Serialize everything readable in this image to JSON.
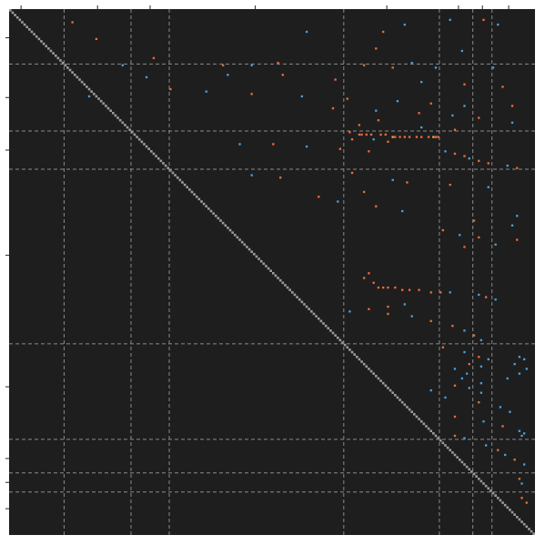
{
  "chart_data": {
    "type": "heatmap",
    "title": "",
    "xlabel": "",
    "ylabel": "",
    "matrix_size": 220,
    "background_color": "#1e1e1e",
    "diagonal_color": "#9a9a9a",
    "grid_line_color": "#8a8a8a",
    "grid_line_style": "dashed",
    "color_positive": "#ef6a3a",
    "color_negative": "#4a9fd8",
    "color_highlight": "#f2a35e",
    "block_boundaries": [
      23,
      51,
      67,
      140,
      180,
      194,
      202
    ],
    "x_ticks": [
      5,
      37,
      59,
      103,
      158,
      188,
      198,
      209
    ],
    "y_ticks": [
      12,
      37,
      59,
      103,
      158,
      188,
      198,
      209
    ],
    "cells": [
      [
        5,
        26,
        1
      ],
      [
        12,
        36,
        1
      ],
      [
        20,
        60,
        1
      ],
      [
        33,
        67,
        1
      ],
      [
        36,
        33,
        -1
      ],
      [
        9,
        124,
        -1
      ],
      [
        9,
        156,
        1
      ],
      [
        4,
        184,
        -1
      ],
      [
        4,
        198,
        1
      ],
      [
        6,
        204,
        -1
      ],
      [
        16,
        153,
        1
      ],
      [
        17,
        189,
        -1
      ],
      [
        6,
        165,
        -1
      ],
      [
        22,
        112,
        1
      ],
      [
        22,
        168,
        -1
      ],
      [
        23,
        47,
        -1
      ],
      [
        23,
        89,
        1
      ],
      [
        23,
        101,
        -1
      ],
      [
        23,
        148,
        1
      ],
      [
        24,
        160,
        1
      ],
      [
        24,
        178,
        -1
      ],
      [
        24,
        202,
        -1
      ],
      [
        27,
        91,
        -1
      ],
      [
        27,
        114,
        1
      ],
      [
        28,
        57,
        -1
      ],
      [
        29,
        136,
        1
      ],
      [
        30,
        172,
        -1
      ],
      [
        31,
        190,
        1
      ],
      [
        32,
        206,
        1
      ],
      [
        34,
        82,
        -1
      ],
      [
        35,
        101,
        1
      ],
      [
        36,
        122,
        -1
      ],
      [
        37,
        141,
        1
      ],
      [
        38,
        162,
        -1
      ],
      [
        39,
        176,
        1
      ],
      [
        40,
        190,
        -1
      ],
      [
        40,
        210,
        1
      ],
      [
        41,
        135,
        1
      ],
      [
        42,
        153,
        -1
      ],
      [
        43,
        171,
        1
      ],
      [
        44,
        185,
        -1
      ],
      [
        45,
        196,
        1
      ],
      [
        46,
        154,
        1
      ],
      [
        47,
        210,
        -1
      ],
      [
        48,
        146,
        1
      ],
      [
        49,
        172,
        -1
      ],
      [
        50,
        186,
        1
      ],
      [
        51,
        142,
        1
      ],
      [
        52,
        146,
        1
      ],
      [
        52,
        147,
        1
      ],
      [
        52,
        149,
        1
      ],
      [
        52,
        151,
        1
      ],
      [
        52,
        155,
        1
      ],
      [
        52,
        157,
        1
      ],
      [
        53,
        160,
        2
      ],
      [
        53,
        161,
        1
      ],
      [
        53,
        163,
        1
      ],
      [
        53,
        165,
        1
      ],
      [
        53,
        167,
        1
      ],
      [
        53,
        170,
        1
      ],
      [
        53,
        172,
        1
      ],
      [
        53,
        175,
        1
      ],
      [
        53,
        177,
        2
      ],
      [
        53,
        178,
        1
      ],
      [
        53,
        179,
        1
      ],
      [
        54,
        143,
        1
      ],
      [
        54,
        152,
        -1
      ],
      [
        55,
        158,
        1
      ],
      [
        56,
        96,
        -1
      ],
      [
        56,
        110,
        1
      ],
      [
        57,
        124,
        -1
      ],
      [
        58,
        138,
        1
      ],
      [
        59,
        150,
        1
      ],
      [
        59,
        182,
        -1
      ],
      [
        60,
        186,
        1
      ],
      [
        61,
        190,
        1
      ],
      [
        62,
        192,
        -1
      ],
      [
        63,
        196,
        1
      ],
      [
        64,
        200,
        1
      ],
      [
        65,
        208,
        -1
      ],
      [
        66,
        212,
        1
      ],
      [
        68,
        143,
        1
      ],
      [
        69,
        101,
        -1
      ],
      [
        70,
        113,
        1
      ],
      [
        71,
        160,
        -1
      ],
      [
        72,
        166,
        1
      ],
      [
        73,
        184,
        1
      ],
      [
        74,
        200,
        -1
      ],
      [
        76,
        148,
        1
      ],
      [
        78,
        129,
        1
      ],
      [
        80,
        137,
        -1
      ],
      [
        82,
        153,
        1
      ],
      [
        84,
        164,
        -1
      ],
      [
        86,
        212,
        -1
      ],
      [
        88,
        194,
        1
      ],
      [
        90,
        210,
        -1
      ],
      [
        92,
        181,
        1
      ],
      [
        94,
        188,
        -1
      ],
      [
        95,
        196,
        1
      ],
      [
        96,
        212,
        1
      ],
      [
        98,
        203,
        -1
      ],
      [
        99,
        190,
        1
      ],
      [
        110,
        150,
        1
      ],
      [
        112,
        148,
        1
      ],
      [
        114,
        152,
        1
      ],
      [
        116,
        154,
        1
      ],
      [
        116,
        156,
        1
      ],
      [
        116,
        158,
        1
      ],
      [
        116,
        161,
        1
      ],
      [
        117,
        164,
        1
      ],
      [
        117,
        167,
        1
      ],
      [
        117,
        171,
        1
      ],
      [
        118,
        176,
        1
      ],
      [
        118,
        180,
        1
      ],
      [
        118,
        184,
        -1
      ],
      [
        119,
        196,
        -1
      ],
      [
        120,
        199,
        1
      ],
      [
        121,
        203,
        -1
      ],
      [
        123,
        165,
        -1
      ],
      [
        124,
        158,
        1
      ],
      [
        125,
        150,
        1
      ],
      [
        126,
        142,
        -1
      ],
      [
        127,
        158,
        1
      ],
      [
        128,
        168,
        -1
      ],
      [
        130,
        176,
        1
      ],
      [
        132,
        185,
        1
      ],
      [
        134,
        190,
        -1
      ],
      [
        136,
        194,
        1
      ],
      [
        138,
        197,
        -1
      ],
      [
        141,
        181,
        1
      ],
      [
        143,
        190,
        -1
      ],
      [
        145,
        196,
        1
      ],
      [
        146,
        200,
        -1
      ],
      [
        148,
        192,
        1
      ],
      [
        149,
        197,
        -1
      ],
      [
        145,
        213,
        -1
      ],
      [
        146,
        215,
        -1
      ],
      [
        148,
        211,
        -1
      ],
      [
        150,
        216,
        -1
      ],
      [
        152,
        213,
        -1
      ],
      [
        154,
        208,
        -1
      ],
      [
        150,
        186,
        -1
      ],
      [
        152,
        191,
        -1
      ],
      [
        154,
        189,
        -1
      ],
      [
        156,
        197,
        -1
      ],
      [
        158,
        192,
        -1
      ],
      [
        160,
        197,
        -1
      ],
      [
        157,
        186,
        1
      ],
      [
        159,
        176,
        -1
      ],
      [
        162,
        182,
        -1
      ],
      [
        164,
        196,
        1
      ],
      [
        166,
        205,
        -1
      ],
      [
        168,
        209,
        -1
      ],
      [
        170,
        186,
        1
      ],
      [
        172,
        198,
        -1
      ],
      [
        174,
        206,
        1
      ],
      [
        176,
        213,
        -1
      ],
      [
        178,
        214,
        -1
      ],
      [
        177,
        215,
        -1
      ],
      [
        178,
        186,
        1
      ],
      [
        179,
        190,
        -1
      ],
      [
        182,
        199,
        -1
      ],
      [
        184,
        204,
        1
      ],
      [
        186,
        207,
        -1
      ],
      [
        188,
        211,
        1
      ],
      [
        190,
        215,
        -1
      ],
      [
        196,
        213,
        1
      ],
      [
        198,
        214,
        -1
      ],
      [
        204,
        214,
        1
      ],
      [
        206,
        216,
        1
      ]
    ]
  }
}
